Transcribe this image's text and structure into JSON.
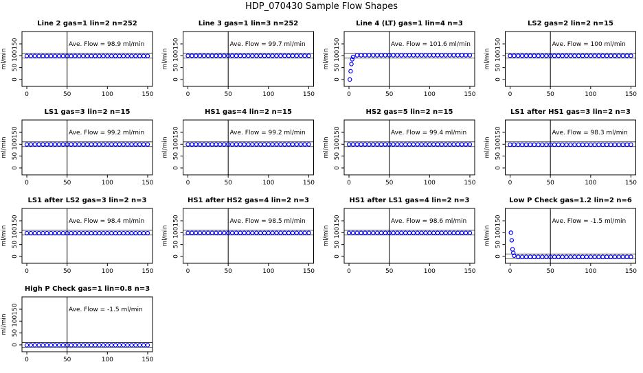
{
  "suptitle": "HDP_070430  Sample Flow Shapes",
  "chart_data": [
    {
      "type": "scatter",
      "title": "Line 2 gas=1 lin=2 n=252",
      "ylabel": "ml/min",
      "annotation": "Ave. Flow = 98.9 ml/min",
      "color": "#0000ff",
      "x": [
        0,
        5,
        10,
        15,
        20,
        25,
        30,
        35,
        40,
        45,
        50,
        55,
        60,
        65,
        70,
        75,
        80,
        85,
        90,
        95,
        100,
        105,
        110,
        115,
        120,
        125,
        130,
        135,
        140,
        145,
        150
      ],
      "values": [
        99,
        99,
        99,
        99,
        99,
        99,
        99,
        99,
        99,
        99,
        99,
        99,
        99,
        99,
        99,
        99,
        99,
        99,
        99,
        99,
        99,
        99,
        99,
        99,
        99,
        99,
        99,
        99,
        99,
        99,
        99
      ],
      "xlim": [
        -6,
        156
      ],
      "ylim": [
        -29,
        202
      ],
      "xticks": [
        0,
        50,
        100,
        150
      ],
      "yticks": [
        0,
        50,
        100,
        150
      ],
      "vline": 50,
      "hlines": [
        90,
        110
      ]
    },
    {
      "type": "scatter",
      "title": "Line 3 gas=1 lin=3 n=252",
      "ylabel": "ml/min",
      "annotation": "Ave. Flow = 99.7 ml/min",
      "color": "#0000ff",
      "x": [
        0,
        5,
        10,
        15,
        20,
        25,
        30,
        35,
        40,
        45,
        50,
        55,
        60,
        65,
        70,
        75,
        80,
        85,
        90,
        95,
        100,
        105,
        110,
        115,
        120,
        125,
        130,
        135,
        140,
        145,
        150
      ],
      "values": [
        100,
        100,
        100,
        100,
        100,
        100,
        100,
        100,
        100,
        100,
        100,
        100,
        100,
        100,
        100,
        100,
        100,
        100,
        100,
        100,
        100,
        100,
        100,
        100,
        100,
        100,
        100,
        100,
        100,
        100,
        100
      ],
      "xlim": [
        -6,
        156
      ],
      "ylim": [
        -29,
        202
      ],
      "xticks": [
        0,
        50,
        100,
        150
      ],
      "yticks": [
        0,
        50,
        100,
        150
      ],
      "vline": 50,
      "hlines": [
        90,
        110
      ]
    },
    {
      "type": "scatter",
      "title": "Line 4 (LT) gas=1 lin=4 n=3",
      "ylabel": "ml/min",
      "annotation": "Ave. Flow = 101.6 ml/min",
      "color": "#0000ff",
      "x": [
        1,
        2,
        3,
        4,
        5,
        10,
        15,
        20,
        25,
        30,
        35,
        40,
        45,
        50,
        55,
        60,
        65,
        70,
        75,
        80,
        85,
        90,
        95,
        100,
        105,
        110,
        115,
        120,
        125,
        130,
        135,
        140,
        145,
        150
      ],
      "values": [
        0,
        35,
        65,
        85,
        95,
        102,
        102,
        102,
        102,
        102,
        102,
        102,
        102,
        102,
        102,
        102,
        102,
        102,
        102,
        102,
        102,
        102,
        102,
        102,
        102,
        102,
        102,
        102,
        102,
        102,
        102,
        102,
        102,
        102
      ],
      "xlim": [
        -6,
        156
      ],
      "ylim": [
        -29,
        202
      ],
      "xticks": [
        0,
        50,
        100,
        150
      ],
      "yticks": [
        0,
        50,
        100,
        150
      ],
      "vline": 50,
      "hlines": [
        90,
        110
      ]
    },
    {
      "type": "scatter",
      "title": "LS2 gas=2 lin=2 n=15",
      "ylabel": "ml/min",
      "annotation": "Ave. Flow = 100 ml/min",
      "color": "#0000ff",
      "x": [
        0,
        5,
        10,
        15,
        20,
        25,
        30,
        35,
        40,
        45,
        50,
        55,
        60,
        65,
        70,
        75,
        80,
        85,
        90,
        95,
        100,
        105,
        110,
        115,
        120,
        125,
        130,
        135,
        140,
        145,
        150
      ],
      "values": [
        100,
        100,
        100,
        100,
        100,
        100,
        100,
        100,
        100,
        100,
        100,
        100,
        100,
        100,
        100,
        100,
        100,
        100,
        100,
        100,
        100,
        100,
        100,
        100,
        100,
        100,
        100,
        100,
        100,
        100,
        100
      ],
      "xlim": [
        -6,
        156
      ],
      "ylim": [
        -29,
        202
      ],
      "xticks": [
        0,
        50,
        100,
        150
      ],
      "yticks": [
        0,
        50,
        100,
        150
      ],
      "vline": 50,
      "hlines": [
        90,
        110
      ]
    },
    {
      "type": "scatter",
      "title": "LS1 gas=3 lin=2 n=15",
      "ylabel": "ml/min",
      "annotation": "Ave. Flow = 99.2 ml/min",
      "color": "#0000ff",
      "x": [
        0,
        5,
        10,
        15,
        20,
        25,
        30,
        35,
        40,
        45,
        50,
        55,
        60,
        65,
        70,
        75,
        80,
        85,
        90,
        95,
        100,
        105,
        110,
        115,
        120,
        125,
        130,
        135,
        140,
        145,
        150
      ],
      "values": [
        99,
        99,
        99,
        99,
        99,
        99,
        99,
        99,
        99,
        99,
        99,
        99,
        99,
        99,
        99,
        99,
        99,
        99,
        99,
        99,
        99,
        99,
        99,
        99,
        99,
        99,
        99,
        99,
        99,
        99,
        99
      ],
      "xlim": [
        -6,
        156
      ],
      "ylim": [
        -29,
        202
      ],
      "xticks": [
        0,
        50,
        100,
        150
      ],
      "yticks": [
        0,
        50,
        100,
        150
      ],
      "vline": 50,
      "hlines": [
        90,
        110
      ]
    },
    {
      "type": "scatter",
      "title": "HS1 gas=4 lin=2 n=15",
      "ylabel": "ml/min",
      "annotation": "Ave. Flow = 99.2 ml/min",
      "color": "#0000ff",
      "x": [
        0,
        5,
        10,
        15,
        20,
        25,
        30,
        35,
        40,
        45,
        50,
        55,
        60,
        65,
        70,
        75,
        80,
        85,
        90,
        95,
        100,
        105,
        110,
        115,
        120,
        125,
        130,
        135,
        140,
        145,
        150
      ],
      "values": [
        99,
        99,
        99,
        99,
        99,
        99,
        99,
        99,
        99,
        99,
        99,
        99,
        99,
        99,
        99,
        99,
        99,
        99,
        99,
        99,
        99,
        99,
        99,
        99,
        99,
        99,
        99,
        99,
        99,
        99,
        99
      ],
      "xlim": [
        -6,
        156
      ],
      "ylim": [
        -29,
        202
      ],
      "xticks": [
        0,
        50,
        100,
        150
      ],
      "yticks": [
        0,
        50,
        100,
        150
      ],
      "vline": 50,
      "hlines": [
        90,
        110
      ]
    },
    {
      "type": "scatter",
      "title": "HS2 gas=5 lin=2 n=15",
      "ylabel": "ml/min",
      "annotation": "Ave. Flow = 99.4 ml/min",
      "color": "#0000ff",
      "x": [
        0,
        5,
        10,
        15,
        20,
        25,
        30,
        35,
        40,
        45,
        50,
        55,
        60,
        65,
        70,
        75,
        80,
        85,
        90,
        95,
        100,
        105,
        110,
        115,
        120,
        125,
        130,
        135,
        140,
        145,
        150
      ],
      "values": [
        99,
        99,
        99,
        99,
        99,
        99,
        99,
        99,
        99,
        99,
        99,
        99,
        99,
        99,
        99,
        99,
        99,
        99,
        99,
        99,
        99,
        99,
        99,
        99,
        99,
        99,
        99,
        99,
        99,
        99,
        99
      ],
      "xlim": [
        -6,
        156
      ],
      "ylim": [
        -29,
        202
      ],
      "xticks": [
        0,
        50,
        100,
        150
      ],
      "yticks": [
        0,
        50,
        100,
        150
      ],
      "vline": 50,
      "hlines": [
        90,
        110
      ]
    },
    {
      "type": "scatter",
      "title": "LS1 after HS1 gas=3 lin=2 n=3",
      "ylabel": "ml/min",
      "annotation": "Ave. Flow = 98.3 ml/min",
      "color": "#0000ff",
      "x": [
        0,
        5,
        10,
        15,
        20,
        25,
        30,
        35,
        40,
        45,
        50,
        55,
        60,
        65,
        70,
        75,
        80,
        85,
        90,
        95,
        100,
        105,
        110,
        115,
        120,
        125,
        130,
        135,
        140,
        145,
        150
      ],
      "values": [
        98,
        98,
        98,
        98,
        98,
        98,
        98,
        98,
        98,
        98,
        98,
        98,
        98,
        98,
        98,
        98,
        98,
        98,
        98,
        98,
        98,
        98,
        98,
        98,
        98,
        98,
        98,
        98,
        98,
        98,
        98
      ],
      "xlim": [
        -6,
        156
      ],
      "ylim": [
        -29,
        202
      ],
      "xticks": [
        0,
        50,
        100,
        150
      ],
      "yticks": [
        0,
        50,
        100,
        150
      ],
      "vline": 50,
      "hlines": [
        90,
        110
      ]
    },
    {
      "type": "scatter",
      "title": "LS1 after LS2 gas=3 lin=2 n=3",
      "ylabel": "ml/min",
      "annotation": "Ave. Flow = 98.4 ml/min",
      "color": "#0000ff",
      "x": [
        0,
        5,
        10,
        15,
        20,
        25,
        30,
        35,
        40,
        45,
        50,
        55,
        60,
        65,
        70,
        75,
        80,
        85,
        90,
        95,
        100,
        105,
        110,
        115,
        120,
        125,
        130,
        135,
        140,
        145,
        150
      ],
      "values": [
        98,
        98,
        98,
        98,
        98,
        98,
        98,
        98,
        98,
        98,
        98,
        98,
        98,
        98,
        98,
        98,
        98,
        98,
        98,
        98,
        98,
        98,
        98,
        98,
        98,
        98,
        98,
        98,
        98,
        98,
        98
      ],
      "xlim": [
        -6,
        156
      ],
      "ylim": [
        -29,
        202
      ],
      "xticks": [
        0,
        50,
        100,
        150
      ],
      "yticks": [
        0,
        50,
        100,
        150
      ],
      "vline": 50,
      "hlines": [
        90,
        110
      ]
    },
    {
      "type": "scatter",
      "title": "HS1 after HS2 gas=4 lin=2 n=3",
      "ylabel": "ml/min",
      "annotation": "Ave. Flow = 98.5 ml/min",
      "color": "#0000ff",
      "x": [
        0,
        5,
        10,
        15,
        20,
        25,
        30,
        35,
        40,
        45,
        50,
        55,
        60,
        65,
        70,
        75,
        80,
        85,
        90,
        95,
        100,
        105,
        110,
        115,
        120,
        125,
        130,
        135,
        140,
        145,
        150
      ],
      "values": [
        99,
        99,
        99,
        99,
        99,
        99,
        99,
        99,
        99,
        99,
        99,
        99,
        99,
        99,
        99,
        99,
        99,
        99,
        99,
        99,
        99,
        99,
        99,
        99,
        99,
        99,
        99,
        99,
        99,
        99,
        99
      ],
      "xlim": [
        -6,
        156
      ],
      "ylim": [
        -29,
        202
      ],
      "xticks": [
        0,
        50,
        100,
        150
      ],
      "yticks": [
        0,
        50,
        100,
        150
      ],
      "vline": 50,
      "hlines": [
        90,
        110
      ]
    },
    {
      "type": "scatter",
      "title": "HS1 after LS1 gas=4 lin=2 n=3",
      "ylabel": "ml/min",
      "annotation": "Ave. Flow = 98.6 ml/min",
      "color": "#0000ff",
      "x": [
        0,
        5,
        10,
        15,
        20,
        25,
        30,
        35,
        40,
        45,
        50,
        55,
        60,
        65,
        70,
        75,
        80,
        85,
        90,
        95,
        100,
        105,
        110,
        115,
        120,
        125,
        130,
        135,
        140,
        145,
        150
      ],
      "values": [
        99,
        99,
        99,
        99,
        99,
        99,
        99,
        99,
        99,
        99,
        99,
        99,
        99,
        99,
        99,
        99,
        99,
        99,
        99,
        99,
        99,
        99,
        99,
        99,
        99,
        99,
        99,
        99,
        99,
        99,
        99
      ],
      "xlim": [
        -6,
        156
      ],
      "ylim": [
        -29,
        202
      ],
      "xticks": [
        0,
        50,
        100,
        150
      ],
      "yticks": [
        0,
        50,
        100,
        150
      ],
      "vline": 50,
      "hlines": [
        90,
        110
      ]
    },
    {
      "type": "scatter",
      "title": "Low P Check gas=1.2 lin=2 n=6",
      "ylabel": "ml/min",
      "annotation": "Ave. Flow = -1.5 ml/min",
      "color": "#0000ff",
      "x": [
        1,
        2,
        3,
        4,
        5,
        10,
        15,
        20,
        25,
        30,
        35,
        40,
        45,
        50,
        55,
        60,
        65,
        70,
        75,
        80,
        85,
        90,
        95,
        100,
        105,
        110,
        115,
        120,
        125,
        130,
        135,
        140,
        145,
        150
      ],
      "values": [
        100,
        68,
        30,
        15,
        3,
        -1.5,
        -1.5,
        -1.5,
        -1.5,
        -1.5,
        -1.5,
        -1.5,
        -1.5,
        -1.5,
        -1.5,
        -1.5,
        -1.5,
        -1.5,
        -1.5,
        -1.5,
        -1.5,
        -1.5,
        -1.5,
        -1.5,
        -1.5,
        -1.5,
        -1.5,
        -1.5,
        -1.5,
        -1.5,
        -1.5,
        -1.5,
        -1.5,
        -1.5
      ],
      "xlim": [
        -6,
        156
      ],
      "ylim": [
        -29,
        202
      ],
      "xticks": [
        0,
        50,
        100,
        150
      ],
      "yticks": [
        0,
        50,
        100,
        150
      ],
      "vline": 50,
      "hlines": [
        -10,
        10
      ]
    },
    {
      "type": "scatter",
      "title": "High P Check gas=1 lin=0.8 n=3",
      "ylabel": "ml/min",
      "annotation": "Ave. Flow = -1.5 ml/min",
      "color": "#0000ff",
      "x": [
        0,
        5,
        10,
        15,
        20,
        25,
        30,
        35,
        40,
        45,
        50,
        55,
        60,
        65,
        70,
        75,
        80,
        85,
        90,
        95,
        100,
        105,
        110,
        115,
        120,
        125,
        130,
        135,
        140,
        145,
        150
      ],
      "values": [
        -1.5,
        -1.5,
        -1.5,
        -1.5,
        -1.5,
        -1.5,
        -1.5,
        -1.5,
        -1.5,
        -1.5,
        -1.5,
        -1.5,
        -1.5,
        -1.5,
        -1.5,
        -1.5,
        -1.5,
        -1.5,
        -1.5,
        -1.5,
        -1.5,
        -1.5,
        -1.5,
        -1.5,
        -1.5,
        -1.5,
        -1.5,
        -1.5,
        -1.5,
        -1.5,
        -1.5
      ],
      "xlim": [
        -6,
        156
      ],
      "ylim": [
        -29,
        202
      ],
      "xticks": [
        0,
        50,
        100,
        150
      ],
      "yticks": [
        0,
        50,
        100,
        150
      ],
      "vline": 50,
      "hlines": [
        -10,
        10
      ]
    }
  ]
}
